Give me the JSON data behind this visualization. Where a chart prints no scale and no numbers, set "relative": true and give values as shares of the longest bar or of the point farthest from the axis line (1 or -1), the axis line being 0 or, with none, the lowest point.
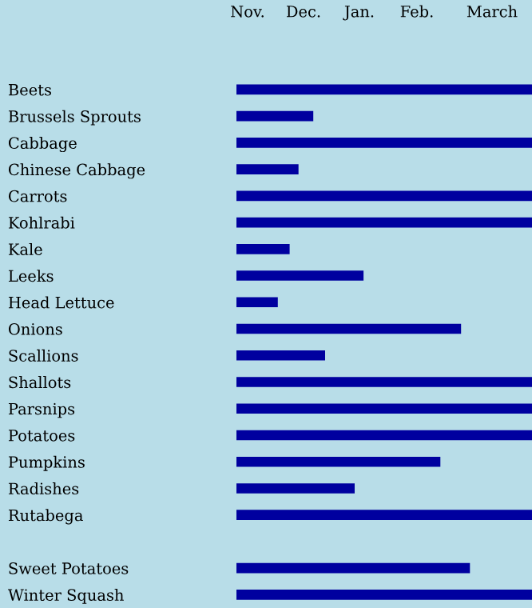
{
  "chart_data": {
    "type": "bar",
    "orientation": "horizontal",
    "relative": true,
    "categories": [
      "Beets",
      "Brussels Sprouts",
      "Cabbage",
      "Chinese Cabbage",
      "Carrots",
      "Kohlrabi",
      "Kale",
      "Leeks",
      "Head Lettuce",
      "Onions",
      "Scallions",
      "Shallots",
      "Parsnips",
      "Potatoes",
      "Pumpkins",
      "Radishes",
      "Rutabega",
      null,
      "Sweet Potatoes",
      "Winter Squash"
    ],
    "values": [
      1,
      0.26,
      1,
      0.21,
      1,
      1,
      0.18,
      0.43,
      0.14,
      0.76,
      0.3,
      1,
      1,
      1,
      0.69,
      0.4,
      1,
      null,
      0.79,
      1
    ],
    "color": "#00009f",
    "annotations": [
      "Nov.",
      "Dec.",
      "Jan.",
      "Feb.",
      "March"
    ]
  }
}
